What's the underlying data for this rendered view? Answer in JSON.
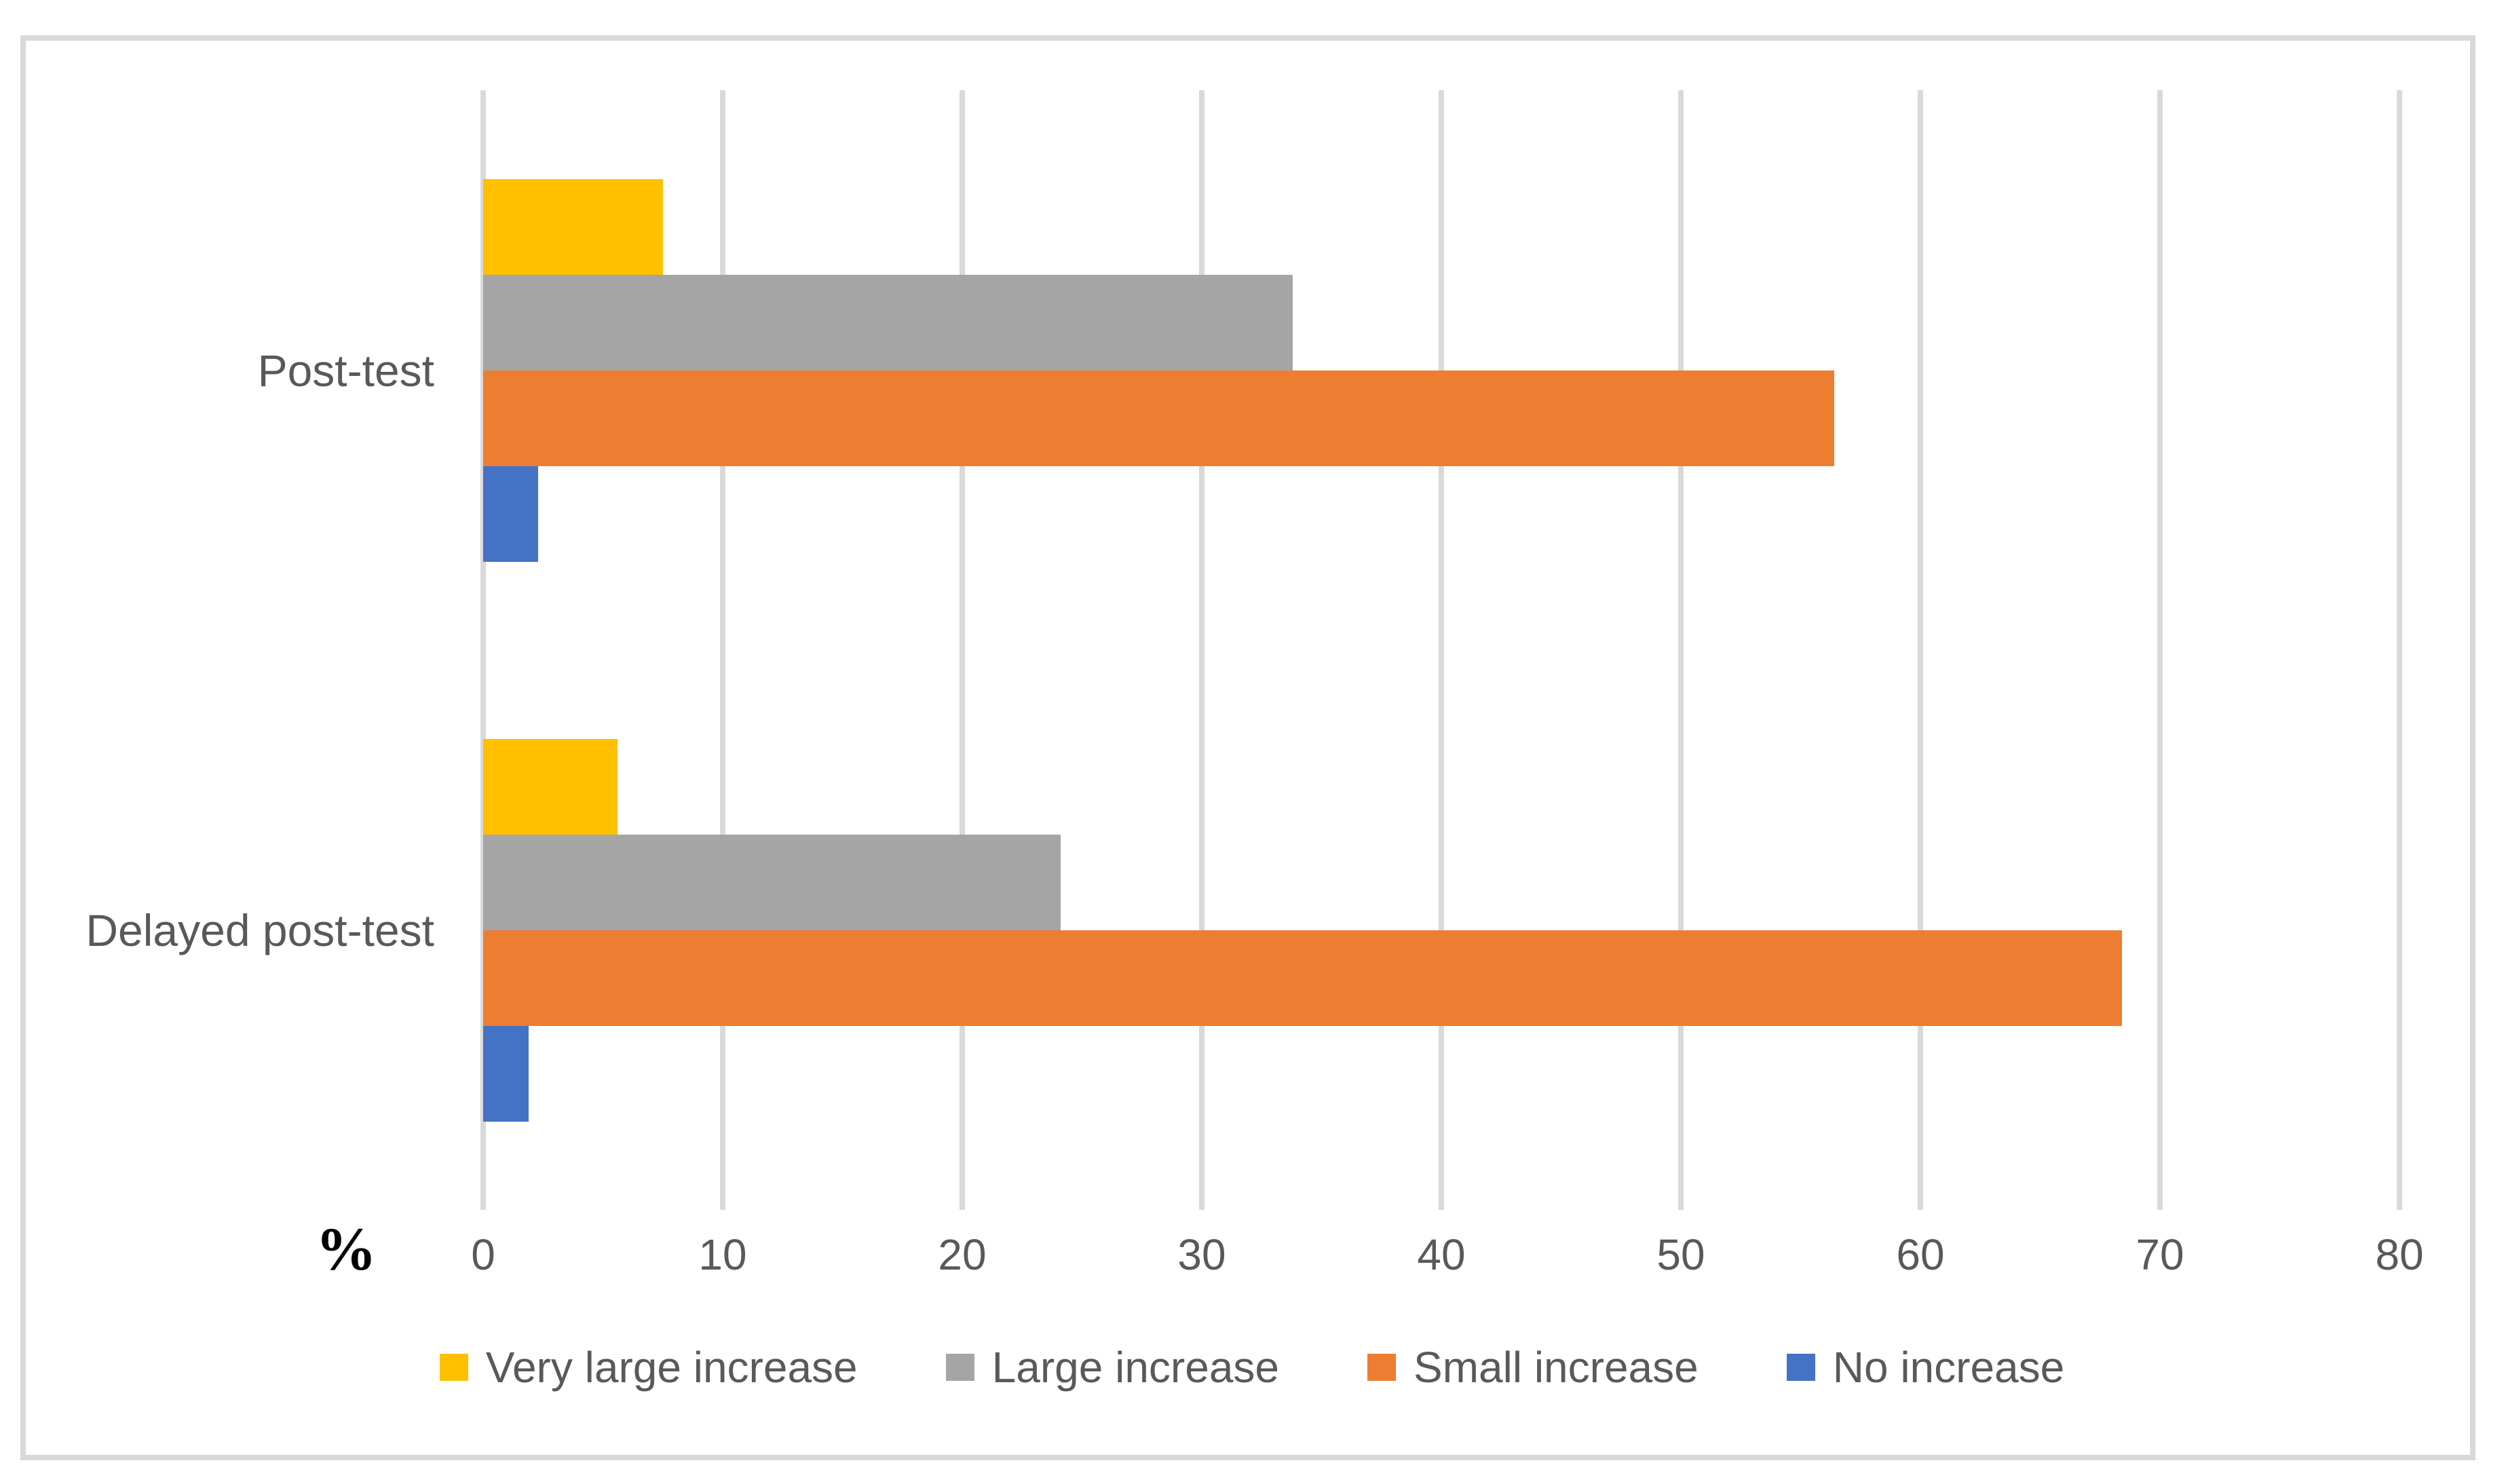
{
  "chart_data": {
    "type": "bar",
    "orientation": "horizontal",
    "categories": [
      "Post-test",
      "Delayed post-test"
    ],
    "series": [
      {
        "name": "Very large increase",
        "color": "#FFC000",
        "values": [
          7.5,
          5.6
        ]
      },
      {
        "name": "Large increase",
        "color": "#A5A5A5",
        "values": [
          33.8,
          24.1
        ]
      },
      {
        "name": "Small increase",
        "color": "#ED7D31",
        "values": [
          56.4,
          68.4
        ]
      },
      {
        "name": "No increase",
        "color": "#4472C4",
        "values": [
          2.3,
          1.9
        ]
      }
    ],
    "series_draw_order": "top-to-bottom within each category group",
    "xlabel": "%",
    "xlim": [
      0,
      80
    ],
    "xticks": [
      "0",
      "10",
      "20",
      "30",
      "40",
      "50",
      "60",
      "70",
      "80"
    ],
    "grid": "vertical-only",
    "legend_position": "bottom-center"
  },
  "colors": {
    "background": "#FFFFFF",
    "frame_border": "#D9D9D9",
    "gridline": "#D9D9D9",
    "tick_text": "#595959",
    "category_text": "#595959",
    "legend_text": "#595959",
    "axis_title_text": "#000000"
  }
}
